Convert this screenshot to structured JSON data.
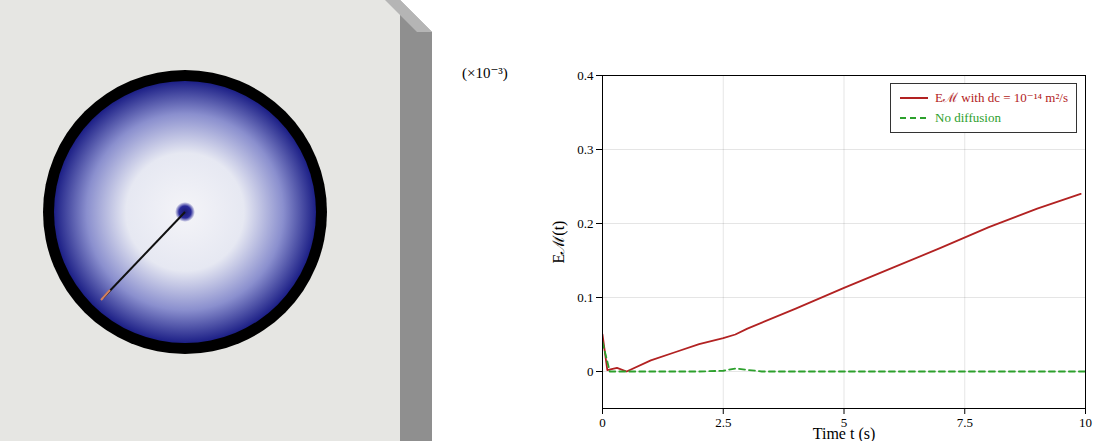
{
  "chart_data": {
    "type": "line",
    "ylabel": "Eℳ(t)",
    "xlabel": "Time t (s)",
    "annotations": [
      "(×10⁻³)"
    ],
    "xlim": [
      0,
      10
    ],
    "xticks": [
      0,
      2.5,
      5,
      7.5,
      10
    ],
    "ylim": [
      -0.05,
      0.4
    ],
    "yticks": [
      0,
      0.1,
      0.2,
      0.3,
      0.4
    ],
    "grid": true,
    "legend": "upper right",
    "series": [
      {
        "name": "Eℳ with dc = 10⁻¹⁴ m²/s",
        "color": "#b22222",
        "line_style": "solid",
        "x": [
          0,
          0.1,
          0.3,
          0.5,
          1,
          1.5,
          2,
          2.5,
          2.75,
          3,
          4,
          5,
          6,
          7,
          8,
          9,
          9.9
        ],
        "values": [
          0.05,
          0.002,
          0.005,
          0.0,
          0.015,
          0.026,
          0.037,
          0.045,
          0.05,
          0.058,
          0.085,
          0.113,
          0.14,
          0.167,
          0.195,
          0.22,
          0.24
        ]
      },
      {
        "name": "No diffusion",
        "color": "#2ca02c",
        "line_style": "dashed",
        "x": [
          0,
          0.15,
          1,
          2,
          2.5,
          2.75,
          3.3,
          5,
          7.5,
          10
        ],
        "values": [
          0.04,
          0.0,
          0.0,
          0.0,
          0.001,
          0.004,
          0.0,
          0.0,
          0.0,
          0.0
        ]
      }
    ]
  }
}
